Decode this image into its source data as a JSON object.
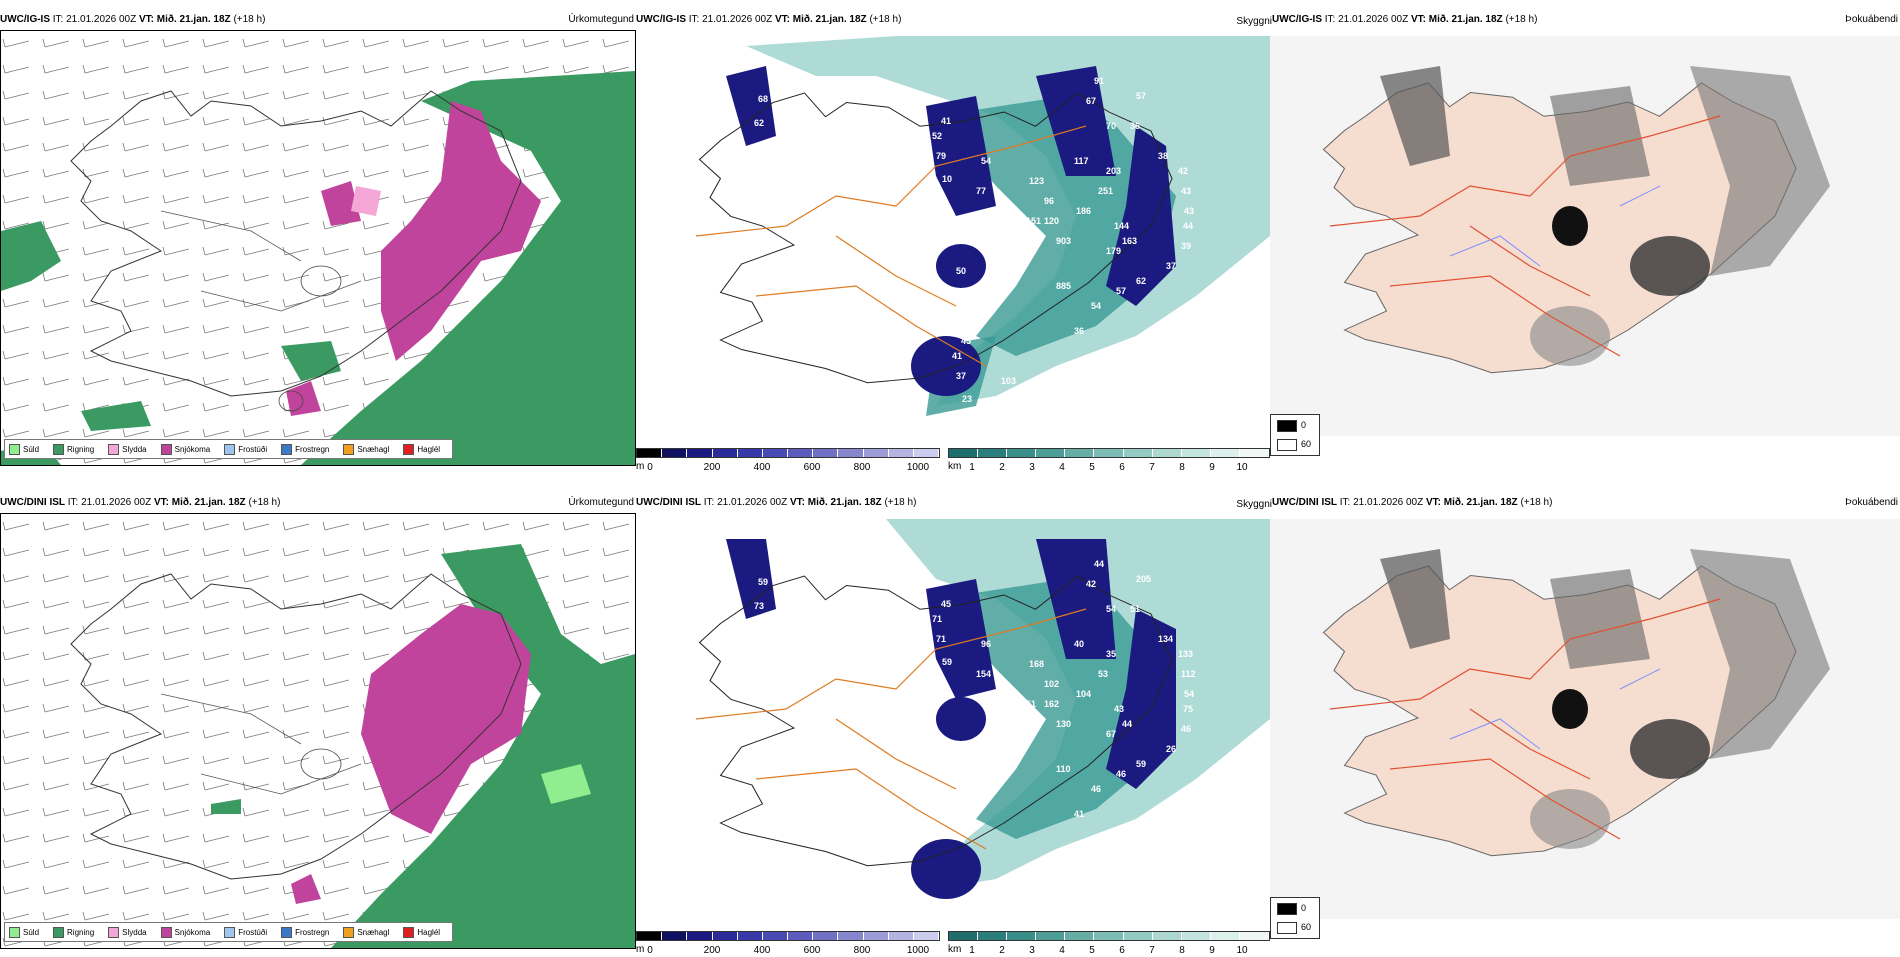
{
  "rows": [
    {
      "model": "UWC/IG-IS",
      "it_label": "IT: 21.01.2026 00Z",
      "vt_label": "VT: Mið. 21.jan. 18Z",
      "lead": "(+18 h)",
      "precip_title": "Úrkomutegund",
      "fog_title": "Þokuábendi",
      "visibility_title": "Skyggni",
      "cloud_labels": [
        "68",
        "62",
        "41",
        "52",
        "79",
        "10",
        "54",
        "77",
        "50",
        "151",
        "178",
        "134",
        "123",
        "96",
        "120",
        "903",
        "885",
        "186",
        "117",
        "251",
        "203",
        "144",
        "163",
        "179",
        "62",
        "57",
        "54",
        "36",
        "67",
        "70",
        "36",
        "91",
        "57",
        "38",
        "42",
        "43",
        "43",
        "44",
        "39",
        "37",
        "33",
        "39",
        "45",
        "41",
        "37",
        "23",
        "103",
        "67"
      ]
    },
    {
      "model": "UWC/DINI ISL",
      "it_label": "IT: 21.01.2026 00Z",
      "vt_label": "VT: Mið. 21.jan. 18Z",
      "lead": "(+18 h)",
      "precip_title": "Úrkomutegund",
      "fog_title": "Þokuábendi",
      "visibility_title": "Skyggni",
      "cloud_labels": [
        "59",
        "73",
        "45",
        "71",
        "71",
        "59",
        "96",
        "154",
        "242",
        "51",
        "53",
        "170",
        "168",
        "102",
        "162",
        "130",
        "110",
        "104",
        "40",
        "53",
        "35",
        "43",
        "44",
        "67",
        "59",
        "46",
        "46",
        "41",
        "42",
        "54",
        "51",
        "44",
        "205",
        "134",
        "133",
        "112",
        "54",
        "75",
        "46",
        "26"
      ]
    }
  ],
  "precip_legend": [
    {
      "label": "Súld",
      "color": "#90ee90"
    },
    {
      "label": "Rigning",
      "color": "#3a9a62"
    },
    {
      "label": "Slydda",
      "color": "#f4a6d7"
    },
    {
      "label": "Snjókoma",
      "color": "#c1449c"
    },
    {
      "label": "Frostúði",
      "color": "#9ec5ee"
    },
    {
      "label": "Frostregn",
      "color": "#3a78c8"
    },
    {
      "label": "Snæhagl",
      "color": "#f0a020"
    },
    {
      "label": "Haglél",
      "color": "#e02020"
    }
  ],
  "cloudbase_colorbar": {
    "unit": "m",
    "ticks": [
      "0",
      "200",
      "400",
      "600",
      "800",
      "1000"
    ],
    "colors": [
      "#000000",
      "#101060",
      "#1a1a80",
      "#2a2a99",
      "#3838a8",
      "#4a4ab4",
      "#5c5cbc",
      "#7070c4",
      "#8686cc",
      "#9c9cd6",
      "#b4b4e2",
      "#ccccee"
    ]
  },
  "visibility_colorbar": {
    "unit": "km",
    "ticks": [
      "1",
      "2",
      "3",
      "4",
      "5",
      "6",
      "7",
      "8",
      "9",
      "10"
    ],
    "colors": [
      "#1e6e6e",
      "#2a7e7e",
      "#3a8e8a",
      "#4e9e98",
      "#64aea6",
      "#7cbcb4",
      "#94cac2",
      "#acd8d0",
      "#c4e4de",
      "#dcf0ec",
      "#f0f8f6"
    ]
  },
  "fog_legend": {
    "high": "0",
    "low": "60"
  },
  "colors": {
    "rain": "#3a9a62",
    "snow": "#c1449c",
    "teal": "#5fb8b0",
    "land_fog": "#f5ddd0",
    "roads": "#e05030",
    "rivers": "#7f8fff"
  }
}
